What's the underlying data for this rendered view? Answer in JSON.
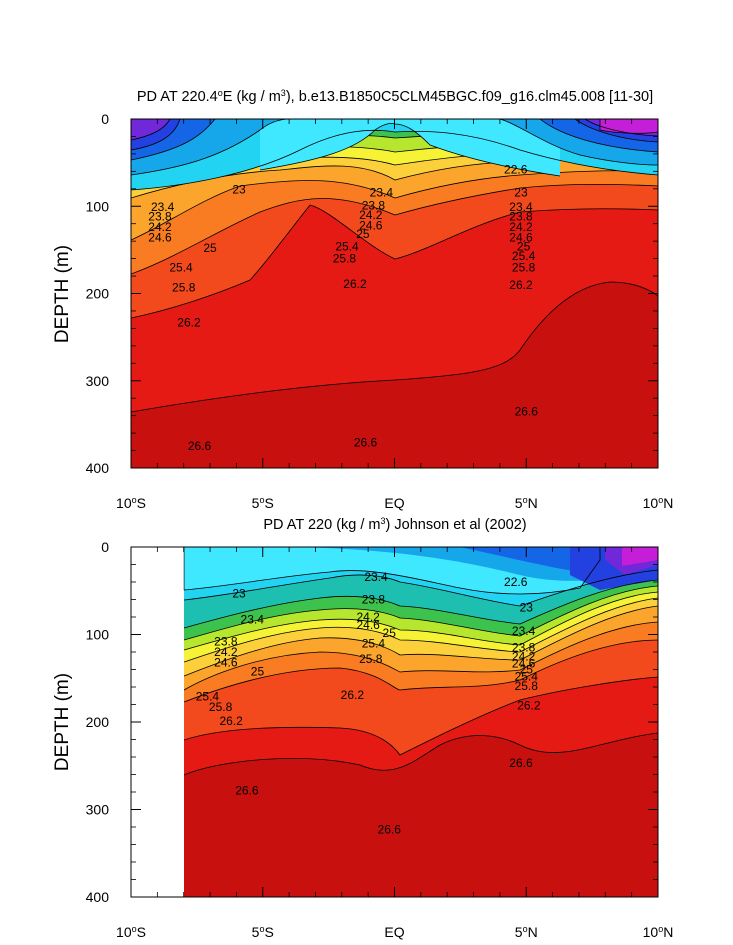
{
  "chart_data": [
    {
      "type": "heatmap",
      "subtype": "filled-contour",
      "title": "PD AT 220.4°E (kg / m³), b.e13.B1850C5CLM45BGC.f09_g16.clm45.008 [11-30]",
      "title_parts": {
        "pre": "PD AT 220.4",
        "sup1": "o",
        "mid": "E (kg / m",
        "sup2": "3",
        "post": "), b.e13.B1850C5CLM45BGC.f09_g16.clm45.008 [11-30]"
      },
      "ylabel": "DEPTH (m)",
      "xlabel": "",
      "xlim": [
        -10,
        10
      ],
      "ylim": [
        0,
        400
      ],
      "y_reversed": true,
      "x_ticks": [
        {
          "value": -10,
          "num": "10",
          "deg": "o",
          "hemi": "S"
        },
        {
          "value": -5,
          "num": "5",
          "deg": "o",
          "hemi": "S"
        },
        {
          "value": 0,
          "num": "EQ",
          "deg": "",
          "hemi": ""
        },
        {
          "value": 5,
          "num": "5",
          "deg": "o",
          "hemi": "N"
        },
        {
          "value": 10,
          "num": "10",
          "deg": "o",
          "hemi": "N"
        }
      ],
      "y_ticks": [
        0,
        100,
        200,
        300,
        400
      ],
      "data_x_range": [
        -10,
        10
      ],
      "contour_levels": [
        22.6,
        23,
        23.4,
        23.8,
        24.2,
        24.6,
        25,
        25.4,
        25.8,
        26.2,
        26.6
      ],
      "contour_labels": [
        {
          "text": "22.6",
          "lat": 4.6,
          "depth": 58
        },
        {
          "text": "23",
          "lat": -5.9,
          "depth": 81
        },
        {
          "text": "23.4",
          "lat": -0.5,
          "depth": 84
        },
        {
          "text": "23",
          "lat": 4.8,
          "depth": 84
        },
        {
          "text": "23.4",
          "lat": -8.8,
          "depth": 101
        },
        {
          "text": "23.8",
          "lat": -0.8,
          "depth": 99
        },
        {
          "text": "23.4",
          "lat": 4.8,
          "depth": 101
        },
        {
          "text": "23.8",
          "lat": -8.9,
          "depth": 112
        },
        {
          "text": "24.2",
          "lat": -0.9,
          "depth": 110
        },
        {
          "text": "23.8",
          "lat": 4.8,
          "depth": 112
        },
        {
          "text": "24.2",
          "lat": -8.9,
          "depth": 124
        },
        {
          "text": "24.6",
          "lat": -0.9,
          "depth": 122
        },
        {
          "text": "24.2",
          "lat": 4.8,
          "depth": 124
        },
        {
          "text": "25",
          "lat": -1.2,
          "depth": 132
        },
        {
          "text": "24.6",
          "lat": -8.9,
          "depth": 136
        },
        {
          "text": "24.6",
          "lat": 4.8,
          "depth": 136
        },
        {
          "text": "25",
          "lat": -7.0,
          "depth": 148
        },
        {
          "text": "25.4",
          "lat": -1.8,
          "depth": 146
        },
        {
          "text": "25",
          "lat": 4.9,
          "depth": 146
        },
        {
          "text": "25.4",
          "lat": 4.9,
          "depth": 157
        },
        {
          "text": "25.8",
          "lat": -1.9,
          "depth": 160
        },
        {
          "text": "25.4",
          "lat": -8.1,
          "depth": 170
        },
        {
          "text": "25.8",
          "lat": 4.9,
          "depth": 170
        },
        {
          "text": "26.2",
          "lat": -1.5,
          "depth": 189
        },
        {
          "text": "26.2",
          "lat": 4.8,
          "depth": 190
        },
        {
          "text": "25.8",
          "lat": -8.0,
          "depth": 193
        },
        {
          "text": "26.2",
          "lat": -7.8,
          "depth": 233
        },
        {
          "text": "26.6",
          "lat": 5.0,
          "depth": 335
        },
        {
          "text": "26.6",
          "lat": -7.4,
          "depth": 375
        },
        {
          "text": "26.6",
          "lat": -1.1,
          "depth": 371
        }
      ]
    },
    {
      "type": "heatmap",
      "subtype": "filled-contour",
      "title": "PD AT 220 (kg / m³) Johnson et al (2002)",
      "title_parts": {
        "pre": "PD AT 220 (kg / m",
        "sup1": "",
        "mid": "",
        "sup2": "3",
        "post": ") Johnson et al (2002)"
      },
      "ylabel": "DEPTH (m)",
      "xlabel": "",
      "xlim": [
        -10,
        10
      ],
      "ylim": [
        0,
        400
      ],
      "y_reversed": true,
      "x_ticks": [
        {
          "value": -10,
          "num": "10",
          "deg": "o",
          "hemi": "S"
        },
        {
          "value": -5,
          "num": "5",
          "deg": "o",
          "hemi": "S"
        },
        {
          "value": 0,
          "num": "EQ",
          "deg": "",
          "hemi": ""
        },
        {
          "value": 5,
          "num": "5",
          "deg": "o",
          "hemi": "N"
        },
        {
          "value": 10,
          "num": "10",
          "deg": "o",
          "hemi": "N"
        }
      ],
      "y_ticks": [
        0,
        100,
        200,
        300,
        400
      ],
      "data_x_range": [
        -8,
        10
      ],
      "contour_levels": [
        22.6,
        23,
        23.4,
        23.8,
        24.2,
        24.6,
        25,
        25.4,
        25.8,
        26.2,
        26.6
      ],
      "contour_labels": [
        {
          "text": "23.4",
          "lat": -0.7,
          "depth": 34
        },
        {
          "text": "22.6",
          "lat": 4.6,
          "depth": 40
        },
        {
          "text": "23",
          "lat": -5.9,
          "depth": 53
        },
        {
          "text": "23.8",
          "lat": -0.8,
          "depth": 60
        },
        {
          "text": "23",
          "lat": 5.0,
          "depth": 69
        },
        {
          "text": "23.4",
          "lat": -5.4,
          "depth": 83
        },
        {
          "text": "24.2",
          "lat": -1.0,
          "depth": 80
        },
        {
          "text": "24.6",
          "lat": -1.0,
          "depth": 89
        },
        {
          "text": "25",
          "lat": -0.2,
          "depth": 98
        },
        {
          "text": "23.4",
          "lat": 4.9,
          "depth": 96
        },
        {
          "text": "23.8",
          "lat": -6.4,
          "depth": 108
        },
        {
          "text": "25.4",
          "lat": -0.8,
          "depth": 110
        },
        {
          "text": "23.8",
          "lat": 4.9,
          "depth": 115
        },
        {
          "text": "24.2",
          "lat": -6.4,
          "depth": 120
        },
        {
          "text": "24.2",
          "lat": 4.9,
          "depth": 125
        },
        {
          "text": "25.8",
          "lat": -0.9,
          "depth": 128
        },
        {
          "text": "24.6",
          "lat": -6.4,
          "depth": 132
        },
        {
          "text": "24.6",
          "lat": 4.9,
          "depth": 133
        },
        {
          "text": "25",
          "lat": 5.0,
          "depth": 140
        },
        {
          "text": "25",
          "lat": -5.2,
          "depth": 142
        },
        {
          "text": "25.4",
          "lat": 5.0,
          "depth": 148
        },
        {
          "text": "25.8",
          "lat": 5.0,
          "depth": 159
        },
        {
          "text": "26.2",
          "lat": -1.6,
          "depth": 169
        },
        {
          "text": "25.4",
          "lat": -7.1,
          "depth": 171
        },
        {
          "text": "26.2",
          "lat": 5.1,
          "depth": 181
        },
        {
          "text": "25.8",
          "lat": -6.6,
          "depth": 183
        },
        {
          "text": "26.2",
          "lat": -6.2,
          "depth": 199
        },
        {
          "text": "26.6",
          "lat": 4.8,
          "depth": 247
        },
        {
          "text": "26.6",
          "lat": -5.6,
          "depth": 278
        },
        {
          "text": "26.6",
          "lat": -0.2,
          "depth": 323
        }
      ]
    }
  ]
}
